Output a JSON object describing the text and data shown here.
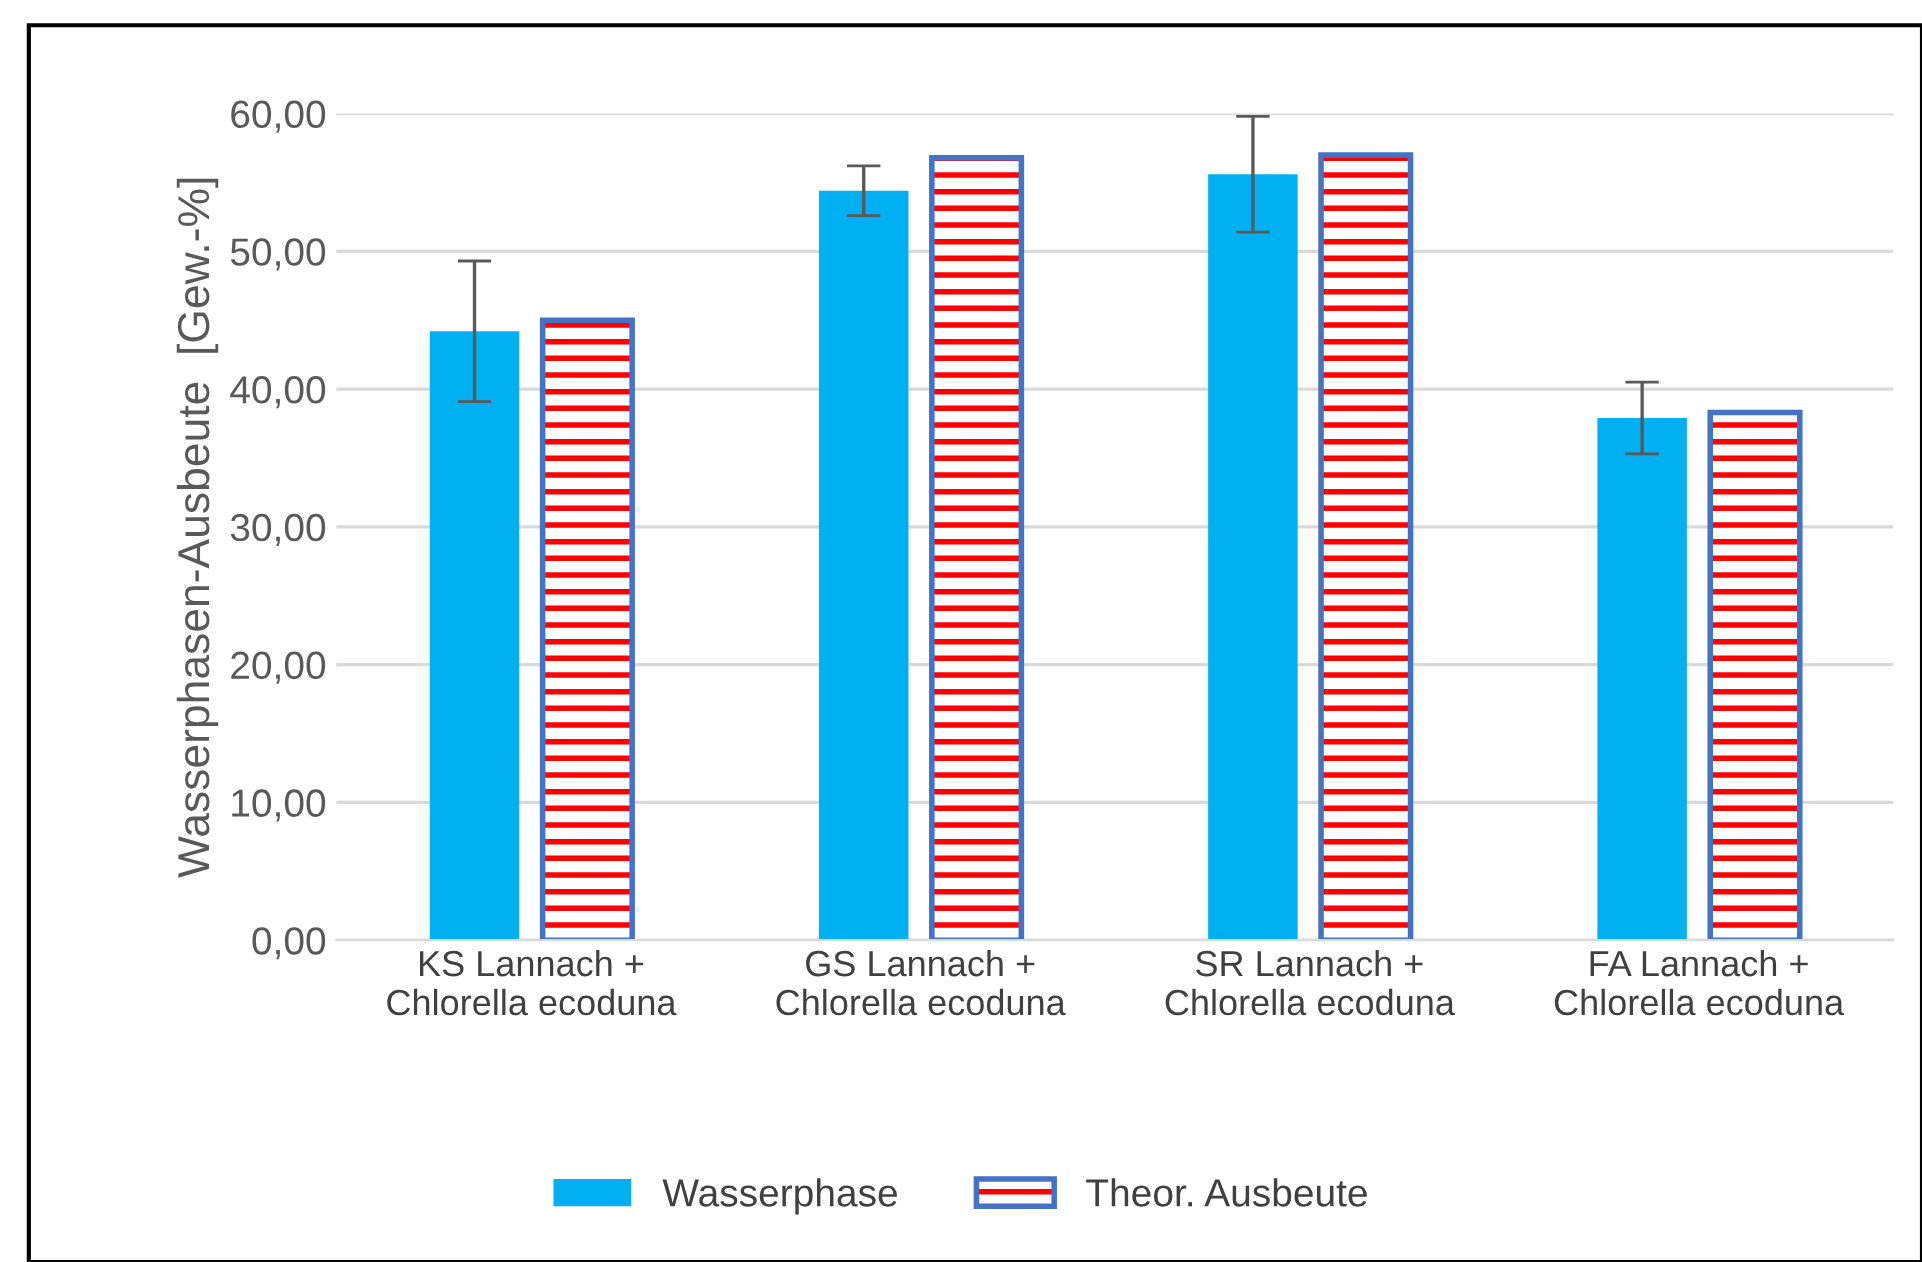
{
  "chart_data": {
    "type": "bar",
    "ylabel": "Wasserphasen-Ausbeute  [Gew.-%]",
    "categories": [
      "KS Lannach +\nChlorella ecoduna",
      "GS Lannach +\nChlorella ecoduna",
      "SR Lannach +\nChlorella ecoduna",
      "FA Lannach +\nChlorella ecoduna"
    ],
    "series": [
      {
        "name": "Wasserphase",
        "color": "#00b0f0",
        "values": [
          44.2,
          54.4,
          55.6,
          37.9
        ],
        "errors": [
          5.1,
          1.8,
          4.2,
          2.6
        ]
      },
      {
        "name": "Theor. Ausbeute",
        "color": "#4472c4",
        "values": [
          45.0,
          56.8,
          57.0,
          38.3
        ]
      }
    ],
    "ylim": [
      0,
      60
    ],
    "yticks": [
      {
        "value": 0,
        "label": "0,00"
      },
      {
        "value": 10,
        "label": "10,00"
      },
      {
        "value": 20,
        "label": "20,00"
      },
      {
        "value": 30,
        "label": "30,00"
      },
      {
        "value": 40,
        "label": "40,00"
      },
      {
        "value": 50,
        "label": "50,00"
      },
      {
        "value": 60,
        "label": "60,00"
      }
    ],
    "grid": "y",
    "legend": "bottom"
  }
}
